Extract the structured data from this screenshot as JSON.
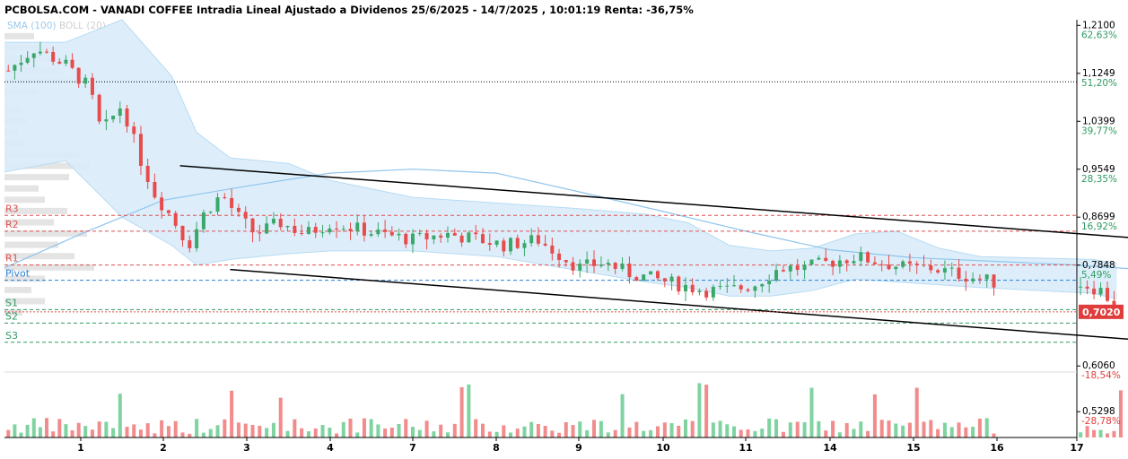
{
  "chart_data": {
    "type": "candlestick",
    "title": "PCBOLSA.COM - VANADI COFFEE Intradia Lineal Ajustado a Dividenos 25/6/2025 - 14/7/2025 , 10:01:19 Renta: -36,75%",
    "legend": {
      "sma": "SMA (100)",
      "boll": "BOLL (20)"
    },
    "ylim": [
      0.6,
      1.22
    ],
    "y_ticks": [
      {
        "price": 1.21,
        "price_label": "1,2100",
        "pct_label": "62,63%",
        "pct_sign": "pos"
      },
      {
        "price": 1.1249,
        "price_label": "1,1249",
        "pct_label": "51,20%",
        "pct_sign": "pos"
      },
      {
        "price": 1.0399,
        "price_label": "1,0399",
        "pct_label": "39,77%",
        "pct_sign": "pos"
      },
      {
        "price": 0.9549,
        "price_label": "0,9549",
        "pct_label": "28,35%",
        "pct_sign": "pos"
      },
      {
        "price": 0.8699,
        "price_label": "0,8699",
        "pct_label": "16,92%",
        "pct_sign": "pos"
      },
      {
        "price": 0.7848,
        "price_label": "0,7848",
        "pct_label": "5,49%",
        "pct_sign": "pos"
      },
      {
        "price": 0.606,
        "price_label": "0,6060",
        "pct_label": "-18,54%",
        "pct_sign": "neg"
      },
      {
        "price": 0.5298,
        "price_label": "0,5298",
        "pct_label": "-28,78%",
        "pct_sign": "neg"
      }
    ],
    "x_labels": [
      "1",
      "2",
      "3",
      "4",
      "7",
      "8",
      "9",
      "10",
      "11",
      "14",
      "15",
      "16",
      "17"
    ],
    "last_price": {
      "value": 0.702,
      "label": "0,7020"
    },
    "reference_line": 1.11,
    "pivot_levels": [
      {
        "name": "R3",
        "value": 0.873,
        "color": "#e05050"
      },
      {
        "name": "R2",
        "value": 0.845,
        "color": "#e05050"
      },
      {
        "name": "R1",
        "value": 0.785,
        "color": "#e05050"
      },
      {
        "name": "Pivot",
        "value": 0.758,
        "color": "#2a7fd6"
      },
      {
        "name": "S1",
        "value": 0.706,
        "color": "#2e9c62"
      },
      {
        "name": "S2",
        "value": 0.682,
        "color": "#2e9c62"
      },
      {
        "name": "S3",
        "value": 0.648,
        "color": "#2e9c62"
      }
    ],
    "channel": {
      "upper": [
        [
          2.2,
          0.961
        ],
        [
          15.8,
          0.8
        ]
      ],
      "lower": [
        [
          2.8,
          0.777
        ],
        [
          15.7,
          0.62
        ]
      ]
    },
    "sma": [
      [
        0,
        0.78
      ],
      [
        1,
        0.84
      ],
      [
        2,
        0.9
      ],
      [
        3,
        0.925
      ],
      [
        4,
        0.948
      ],
      [
        5,
        0.955
      ],
      [
        6,
        0.948
      ],
      [
        7,
        0.915
      ],
      [
        8,
        0.88
      ],
      [
        9,
        0.845
      ],
      [
        10,
        0.812
      ],
      [
        11,
        0.798
      ],
      [
        12,
        0.785
      ],
      [
        13,
        0.775
      ],
      [
        14,
        0.765
      ]
    ],
    "bollinger": {
      "upper": [
        [
          0,
          1.18
        ],
        [
          0.8,
          1.18
        ],
        [
          1.5,
          1.22
        ],
        [
          2.1,
          1.12
        ],
        [
          2.4,
          1.02
        ],
        [
          2.8,
          0.975
        ],
        [
          3.5,
          0.965
        ],
        [
          4.0,
          0.935
        ],
        [
          5.0,
          0.905
        ],
        [
          6.0,
          0.895
        ],
        [
          7.0,
          0.885
        ],
        [
          7.8,
          0.875
        ],
        [
          8.3,
          0.86
        ],
        [
          8.8,
          0.82
        ],
        [
          9.3,
          0.81
        ],
        [
          9.8,
          0.815
        ],
        [
          10.3,
          0.84
        ],
        [
          10.8,
          0.845
        ],
        [
          11.3,
          0.815
        ],
        [
          11.8,
          0.8
        ],
        [
          12.2,
          0.795
        ],
        [
          12.5,
          0.788
        ]
      ],
      "lower": [
        [
          0,
          0.95
        ],
        [
          0.8,
          0.97
        ],
        [
          1.5,
          0.87
        ],
        [
          2.1,
          0.82
        ],
        [
          2.4,
          0.785
        ],
        [
          2.8,
          0.795
        ],
        [
          3.5,
          0.805
        ],
        [
          4.0,
          0.81
        ],
        [
          5.0,
          0.81
        ],
        [
          6.0,
          0.8
        ],
        [
          7.0,
          0.775
        ],
        [
          7.8,
          0.755
        ],
        [
          8.3,
          0.745
        ],
        [
          8.8,
          0.73
        ],
        [
          9.3,
          0.73
        ],
        [
          9.8,
          0.74
        ],
        [
          10.3,
          0.76
        ],
        [
          10.8,
          0.755
        ],
        [
          11.3,
          0.75
        ],
        [
          11.8,
          0.745
        ],
        [
          12.2,
          0.735
        ],
        [
          12.5,
          0.725
        ]
      ]
    },
    "volume_profile": [
      [
        1.19,
        0.33
      ],
      [
        1.17,
        0.4
      ],
      [
        1.15,
        0.5
      ],
      [
        1.13,
        0.62
      ],
      [
        1.11,
        0.8
      ],
      [
        1.09,
        0.38
      ],
      [
        1.06,
        0.2
      ],
      [
        1.04,
        0.25
      ],
      [
        1.02,
        0.15
      ],
      [
        1.0,
        0.2
      ],
      [
        0.98,
        0.85
      ],
      [
        0.96,
        0.95
      ],
      [
        0.94,
        0.72
      ],
      [
        0.92,
        0.38
      ],
      [
        0.9,
        0.45
      ],
      [
        0.88,
        0.7
      ],
      [
        0.86,
        0.55
      ],
      [
        0.84,
        0.92
      ],
      [
        0.82,
        0.6
      ],
      [
        0.8,
        0.78
      ],
      [
        0.78,
        1.0
      ],
      [
        0.76,
        0.45
      ],
      [
        0.74,
        0.3
      ],
      [
        0.72,
        0.45
      ],
      [
        0.7,
        0.2
      ]
    ]
  }
}
